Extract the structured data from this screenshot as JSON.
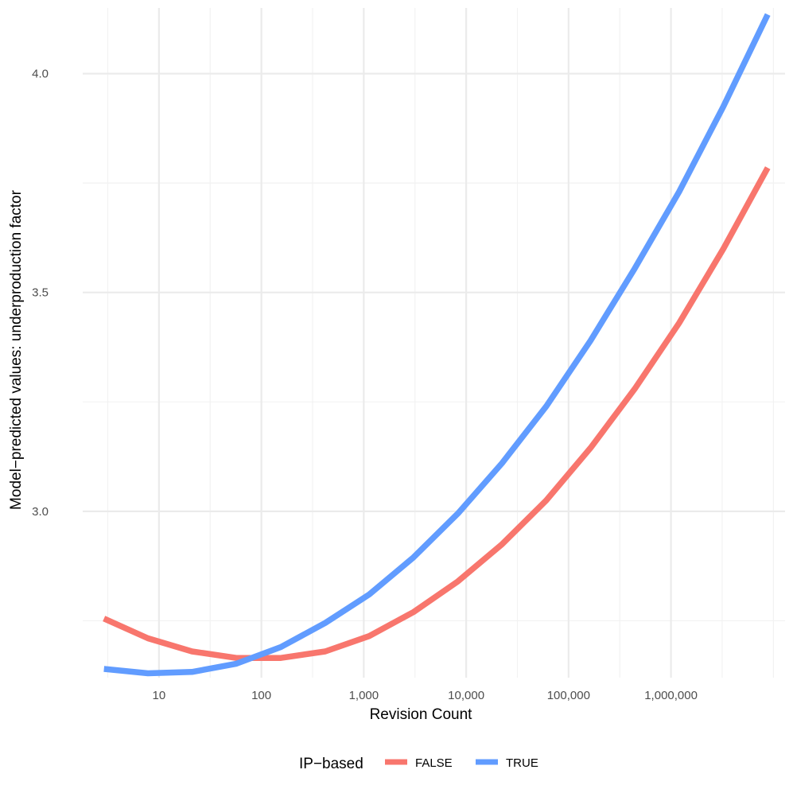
{
  "chart_data": {
    "type": "line",
    "xlabel": "Revision Count",
    "ylabel": "Model−predicted values: underproduction factor",
    "x_scale": "log10",
    "x_tick_labels": [
      "10",
      "100",
      "1,000",
      "10,000",
      "100,000",
      "1,000,000"
    ],
    "y_tick_labels": [
      "3.0",
      "3.5",
      "4.0"
    ],
    "xlim": [
      1.8,
      13000000
    ],
    "ylim": [
      2.62,
      4.15
    ],
    "grid": true,
    "legend": {
      "title": "IP−based",
      "placement": "bottom"
    },
    "x": [
      2.9,
      7.8,
      21,
      57,
      155,
      420,
      1130,
      3060,
      8300,
      22400,
      60600,
      164000,
      443000,
      1200000,
      3250000,
      8800000
    ],
    "series": [
      {
        "name": "FALSE",
        "color": "#F8766D",
        "values": [
          2.755,
          2.71,
          2.68,
          2.665,
          2.665,
          2.68,
          2.715,
          2.77,
          2.84,
          2.925,
          3.025,
          3.145,
          3.28,
          3.43,
          3.6,
          3.785
        ]
      },
      {
        "name": "TRUE",
        "color": "#619CFF",
        "values": [
          2.64,
          2.63,
          2.633,
          2.652,
          2.69,
          2.745,
          2.81,
          2.895,
          2.995,
          3.11,
          3.24,
          3.39,
          3.555,
          3.73,
          3.925,
          4.135
        ]
      }
    ]
  }
}
